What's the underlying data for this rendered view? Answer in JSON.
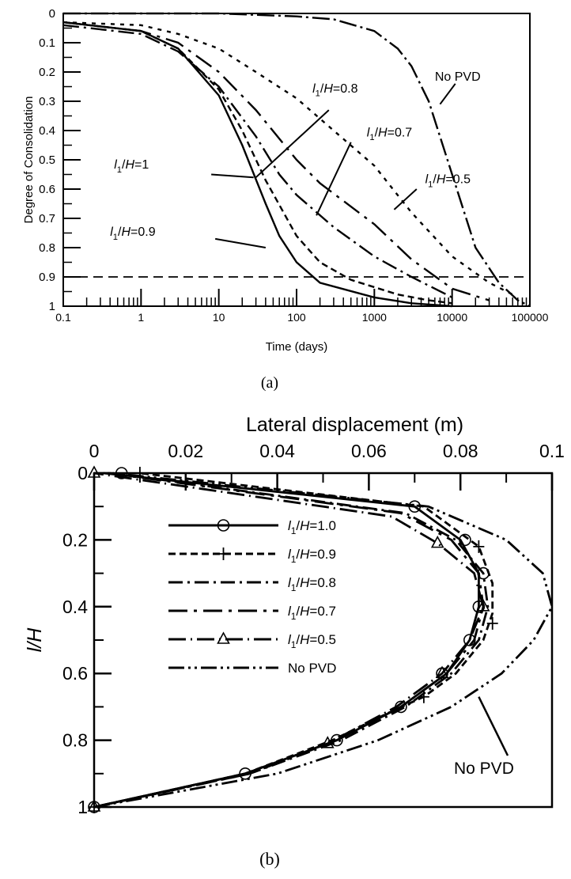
{
  "figure": {
    "caption_a": "(a)",
    "caption_b": "(b)"
  },
  "chart_data": [
    {
      "type": "line",
      "panel": "(a)",
      "xlabel": "Time (days)",
      "ylabel": "Degree of Consolidation",
      "xscale": "log",
      "xlim": [
        0.1,
        100000
      ],
      "ylim": [
        0,
        1
      ],
      "y_inverted": true,
      "x_tick_labels": [
        "0.1",
        "1",
        "10",
        "100",
        "1000",
        "10000",
        "100000"
      ],
      "y_tick_labels": [
        "0",
        "0.1",
        "0.2",
        "0.3",
        "0.4",
        "0.5",
        "0.6",
        "0.7",
        "0.8",
        "0.9",
        "1"
      ],
      "reference_line": {
        "y": 0.9,
        "style": "dashed"
      },
      "series": [
        {
          "name": "l1/H=1",
          "dash": "solid",
          "points": [
            [
              0.1,
              0.03
            ],
            [
              1,
              0.06
            ],
            [
              3,
              0.12
            ],
            [
              10,
              0.28
            ],
            [
              20,
              0.45
            ],
            [
              40,
              0.65
            ],
            [
              60,
              0.76
            ],
            [
              100,
              0.85
            ],
            [
              200,
              0.92
            ],
            [
              1000,
              0.97
            ],
            [
              3000,
              0.99
            ],
            [
              10000,
              1.0
            ]
          ]
        },
        {
          "name": "l1/H=0.9",
          "dash": "8,5",
          "points": [
            [
              0.1,
              0.03
            ],
            [
              1,
              0.06
            ],
            [
              3,
              0.12
            ],
            [
              10,
              0.26
            ],
            [
              20,
              0.4
            ],
            [
              40,
              0.57
            ],
            [
              100,
              0.76
            ],
            [
              200,
              0.85
            ],
            [
              500,
              0.91
            ],
            [
              2000,
              0.96
            ],
            [
              5000,
              0.98
            ],
            [
              10000,
              0.99
            ]
          ]
        },
        {
          "name": "l1/H=0.8",
          "dash": "20,6,3,6",
          "points": [
            [
              0.1,
              0.04
            ],
            [
              1,
              0.07
            ],
            [
              3,
              0.13
            ],
            [
              10,
              0.25
            ],
            [
              30,
              0.42
            ],
            [
              60,
              0.55
            ],
            [
              100,
              0.62
            ],
            [
              300,
              0.73
            ],
            [
              1000,
              0.83
            ],
            [
              3000,
              0.9
            ],
            [
              10000,
              0.97
            ]
          ]
        },
        {
          "name": "l1/H=0.7",
          "dash": "24,8,4,8",
          "points": [
            [
              0.1,
              0.03
            ],
            [
              1,
              0.06
            ],
            [
              3,
              0.1
            ],
            [
              10,
              0.2
            ],
            [
              30,
              0.33
            ],
            [
              100,
              0.5
            ],
            [
              200,
              0.58
            ],
            [
              1000,
              0.72
            ],
            [
              3000,
              0.84
            ],
            [
              10000,
              0.94
            ],
            [
              30000,
              0.98
            ]
          ]
        },
        {
          "name": "l1/H=0.5",
          "dash": "5,7",
          "points": [
            [
              0.1,
              0.03
            ],
            [
              1,
              0.04
            ],
            [
              3,
              0.07
            ],
            [
              10,
              0.12
            ],
            [
              30,
              0.2
            ],
            [
              100,
              0.29
            ],
            [
              300,
              0.4
            ],
            [
              1000,
              0.52
            ],
            [
              3000,
              0.68
            ],
            [
              10000,
              0.83
            ],
            [
              30000,
              0.92
            ],
            [
              60000,
              0.96
            ]
          ]
        },
        {
          "name": "No PVD",
          "dash": "22,5,3,5",
          "points": [
            [
              0.1,
              0.0
            ],
            [
              10,
              0.0
            ],
            [
              100,
              0.01
            ],
            [
              300,
              0.02
            ],
            [
              1000,
              0.06
            ],
            [
              2000,
              0.12
            ],
            [
              3000,
              0.18
            ],
            [
              5000,
              0.3
            ],
            [
              10000,
              0.55
            ],
            [
              20000,
              0.8
            ],
            [
              40000,
              0.92
            ],
            [
              70000,
              0.98
            ],
            [
              100000,
              1.0
            ]
          ]
        }
      ],
      "annotations": [
        {
          "pre": "l",
          "sub": "1",
          "post": "/H=0.8"
        },
        {
          "pre": "l",
          "sub": "1",
          "post": "/H=0.7"
        },
        {
          "pre": "l",
          "sub": "1",
          "post": "/H=0.5"
        },
        {
          "pre": "l",
          "sub": "1",
          "post": "/H=1"
        },
        {
          "pre": "l",
          "sub": "1",
          "post": "/H=0.9"
        },
        {
          "pre": "",
          "sub": "",
          "post": "No PVD"
        }
      ]
    },
    {
      "type": "line",
      "panel": "(b)",
      "xlabel": "Lateral displacement (m)",
      "ylabel": "l/H",
      "xlim": [
        0,
        0.1
      ],
      "ylim": [
        0,
        1
      ],
      "y_inverted": true,
      "x_tick_labels": [
        "0",
        "0.02",
        "0.04",
        "0.06",
        "0.08",
        "0.1"
      ],
      "y_tick_labels": [
        "0",
        "0.2",
        "0.4",
        "0.6",
        "0.8",
        "1"
      ],
      "series": [
        {
          "name": "l1/H=1.0",
          "dash": "solid",
          "marker": "circle",
          "points": [
            [
              0.0,
              1.0
            ],
            [
              0.033,
              0.9
            ],
            [
              0.053,
              0.8
            ],
            [
              0.067,
              0.7
            ],
            [
              0.077,
              0.6
            ],
            [
              0.082,
              0.5
            ],
            [
              0.084,
              0.4
            ],
            [
              0.084,
              0.3
            ],
            [
              0.08,
              0.2
            ],
            [
              0.07,
              0.1
            ],
            [
              0.002,
              0.0
            ]
          ],
          "marker_points": [
            [
              0.0,
              1.0
            ],
            [
              0.033,
              0.9
            ],
            [
              0.053,
              0.8
            ],
            [
              0.067,
              0.7
            ],
            [
              0.076,
              0.6
            ],
            [
              0.082,
              0.5
            ],
            [
              0.084,
              0.4
            ],
            [
              0.085,
              0.3
            ],
            [
              0.081,
              0.2
            ],
            [
              0.07,
              0.1
            ],
            [
              0.006,
              0.0
            ]
          ]
        },
        {
          "name": "l1/H=0.9",
          "dash": "9,5",
          "marker": "plus",
          "points": [
            [
              0.0,
              1.0
            ],
            [
              0.033,
              0.9
            ],
            [
              0.052,
              0.8
            ],
            [
              0.064,
              0.72
            ],
            [
              0.072,
              0.67
            ],
            [
              0.079,
              0.6
            ],
            [
              0.085,
              0.5
            ],
            [
              0.087,
              0.42
            ],
            [
              0.087,
              0.33
            ],
            [
              0.084,
              0.22
            ],
            [
              0.072,
              0.1
            ],
            [
              0.01,
              0.0
            ]
          ],
          "marker_points": [
            [
              0.0,
              1.0
            ],
            [
              0.072,
              0.67
            ],
            [
              0.087,
              0.45
            ],
            [
              0.084,
              0.22
            ],
            [
              0.01,
              0.0
            ]
          ]
        },
        {
          "name": "l1/H=0.8",
          "dash": "18,6,3,6",
          "marker": "none",
          "points": [
            [
              0.0,
              1.0
            ],
            [
              0.034,
              0.9
            ],
            [
              0.054,
              0.8
            ],
            [
              0.068,
              0.7
            ],
            [
              0.078,
              0.6
            ],
            [
              0.084,
              0.5
            ],
            [
              0.086,
              0.4
            ],
            [
              0.085,
              0.3
            ],
            [
              0.079,
              0.2
            ],
            [
              0.068,
              0.12
            ],
            [
              0.004,
              0.0
            ]
          ]
        },
        {
          "name": "l1/H=0.7",
          "dash": "24,8,4,8",
          "marker": "none",
          "points": [
            [
              0.0,
              1.0
            ],
            [
              0.034,
              0.9
            ],
            [
              0.053,
              0.8
            ],
            [
              0.067,
              0.7
            ],
            [
              0.077,
              0.6
            ],
            [
              0.083,
              0.5
            ],
            [
              0.085,
              0.4
            ],
            [
              0.084,
              0.3
            ],
            [
              0.078,
              0.2
            ],
            [
              0.067,
              0.12
            ],
            [
              0.003,
              0.0
            ]
          ]
        },
        {
          "name": "l1/H=0.5",
          "dash": "22,6,2,6",
          "marker": "triangle",
          "points": [
            [
              0.0,
              1.0
            ],
            [
              0.033,
              0.9
            ],
            [
              0.051,
              0.81
            ],
            [
              0.066,
              0.7
            ],
            [
              0.076,
              0.6
            ],
            [
              0.082,
              0.5
            ],
            [
              0.085,
              0.4
            ],
            [
              0.083,
              0.3
            ],
            [
              0.075,
              0.21
            ],
            [
              0.065,
              0.13
            ],
            [
              0.0,
              0.0
            ]
          ],
          "marker_points": [
            [
              0.0,
              1.0
            ],
            [
              0.051,
              0.81
            ],
            [
              0.076,
              0.6
            ],
            [
              0.085,
              0.4
            ],
            [
              0.075,
              0.21
            ],
            [
              0.0,
              0.0
            ]
          ]
        },
        {
          "name": "No PVD",
          "dash": "20,5,3,5,3,5",
          "marker": "none",
          "points": [
            [
              0.0,
              1.0
            ],
            [
              0.04,
              0.9
            ],
            [
              0.062,
              0.8
            ],
            [
              0.078,
              0.7
            ],
            [
              0.089,
              0.6
            ],
            [
              0.096,
              0.5
            ],
            [
              0.1,
              0.4
            ],
            [
              0.098,
              0.3
            ],
            [
              0.09,
              0.2
            ],
            [
              0.073,
              0.1
            ],
            [
              0.004,
              0.0
            ]
          ]
        }
      ],
      "legend": [
        {
          "pre": "l",
          "sub": "1",
          "post": "/H=1.0"
        },
        {
          "pre": "l",
          "sub": "1",
          "post": "/H=0.9"
        },
        {
          "pre": "l",
          "sub": "1",
          "post": "/H=0.8"
        },
        {
          "pre": "l",
          "sub": "1",
          "post": "/H=0.7"
        },
        {
          "pre": "l",
          "sub": "1",
          "post": "/H=0.5"
        },
        {
          "pre": "",
          "sub": "",
          "post": "No PVD"
        }
      ],
      "annotation": "No PVD"
    }
  ]
}
